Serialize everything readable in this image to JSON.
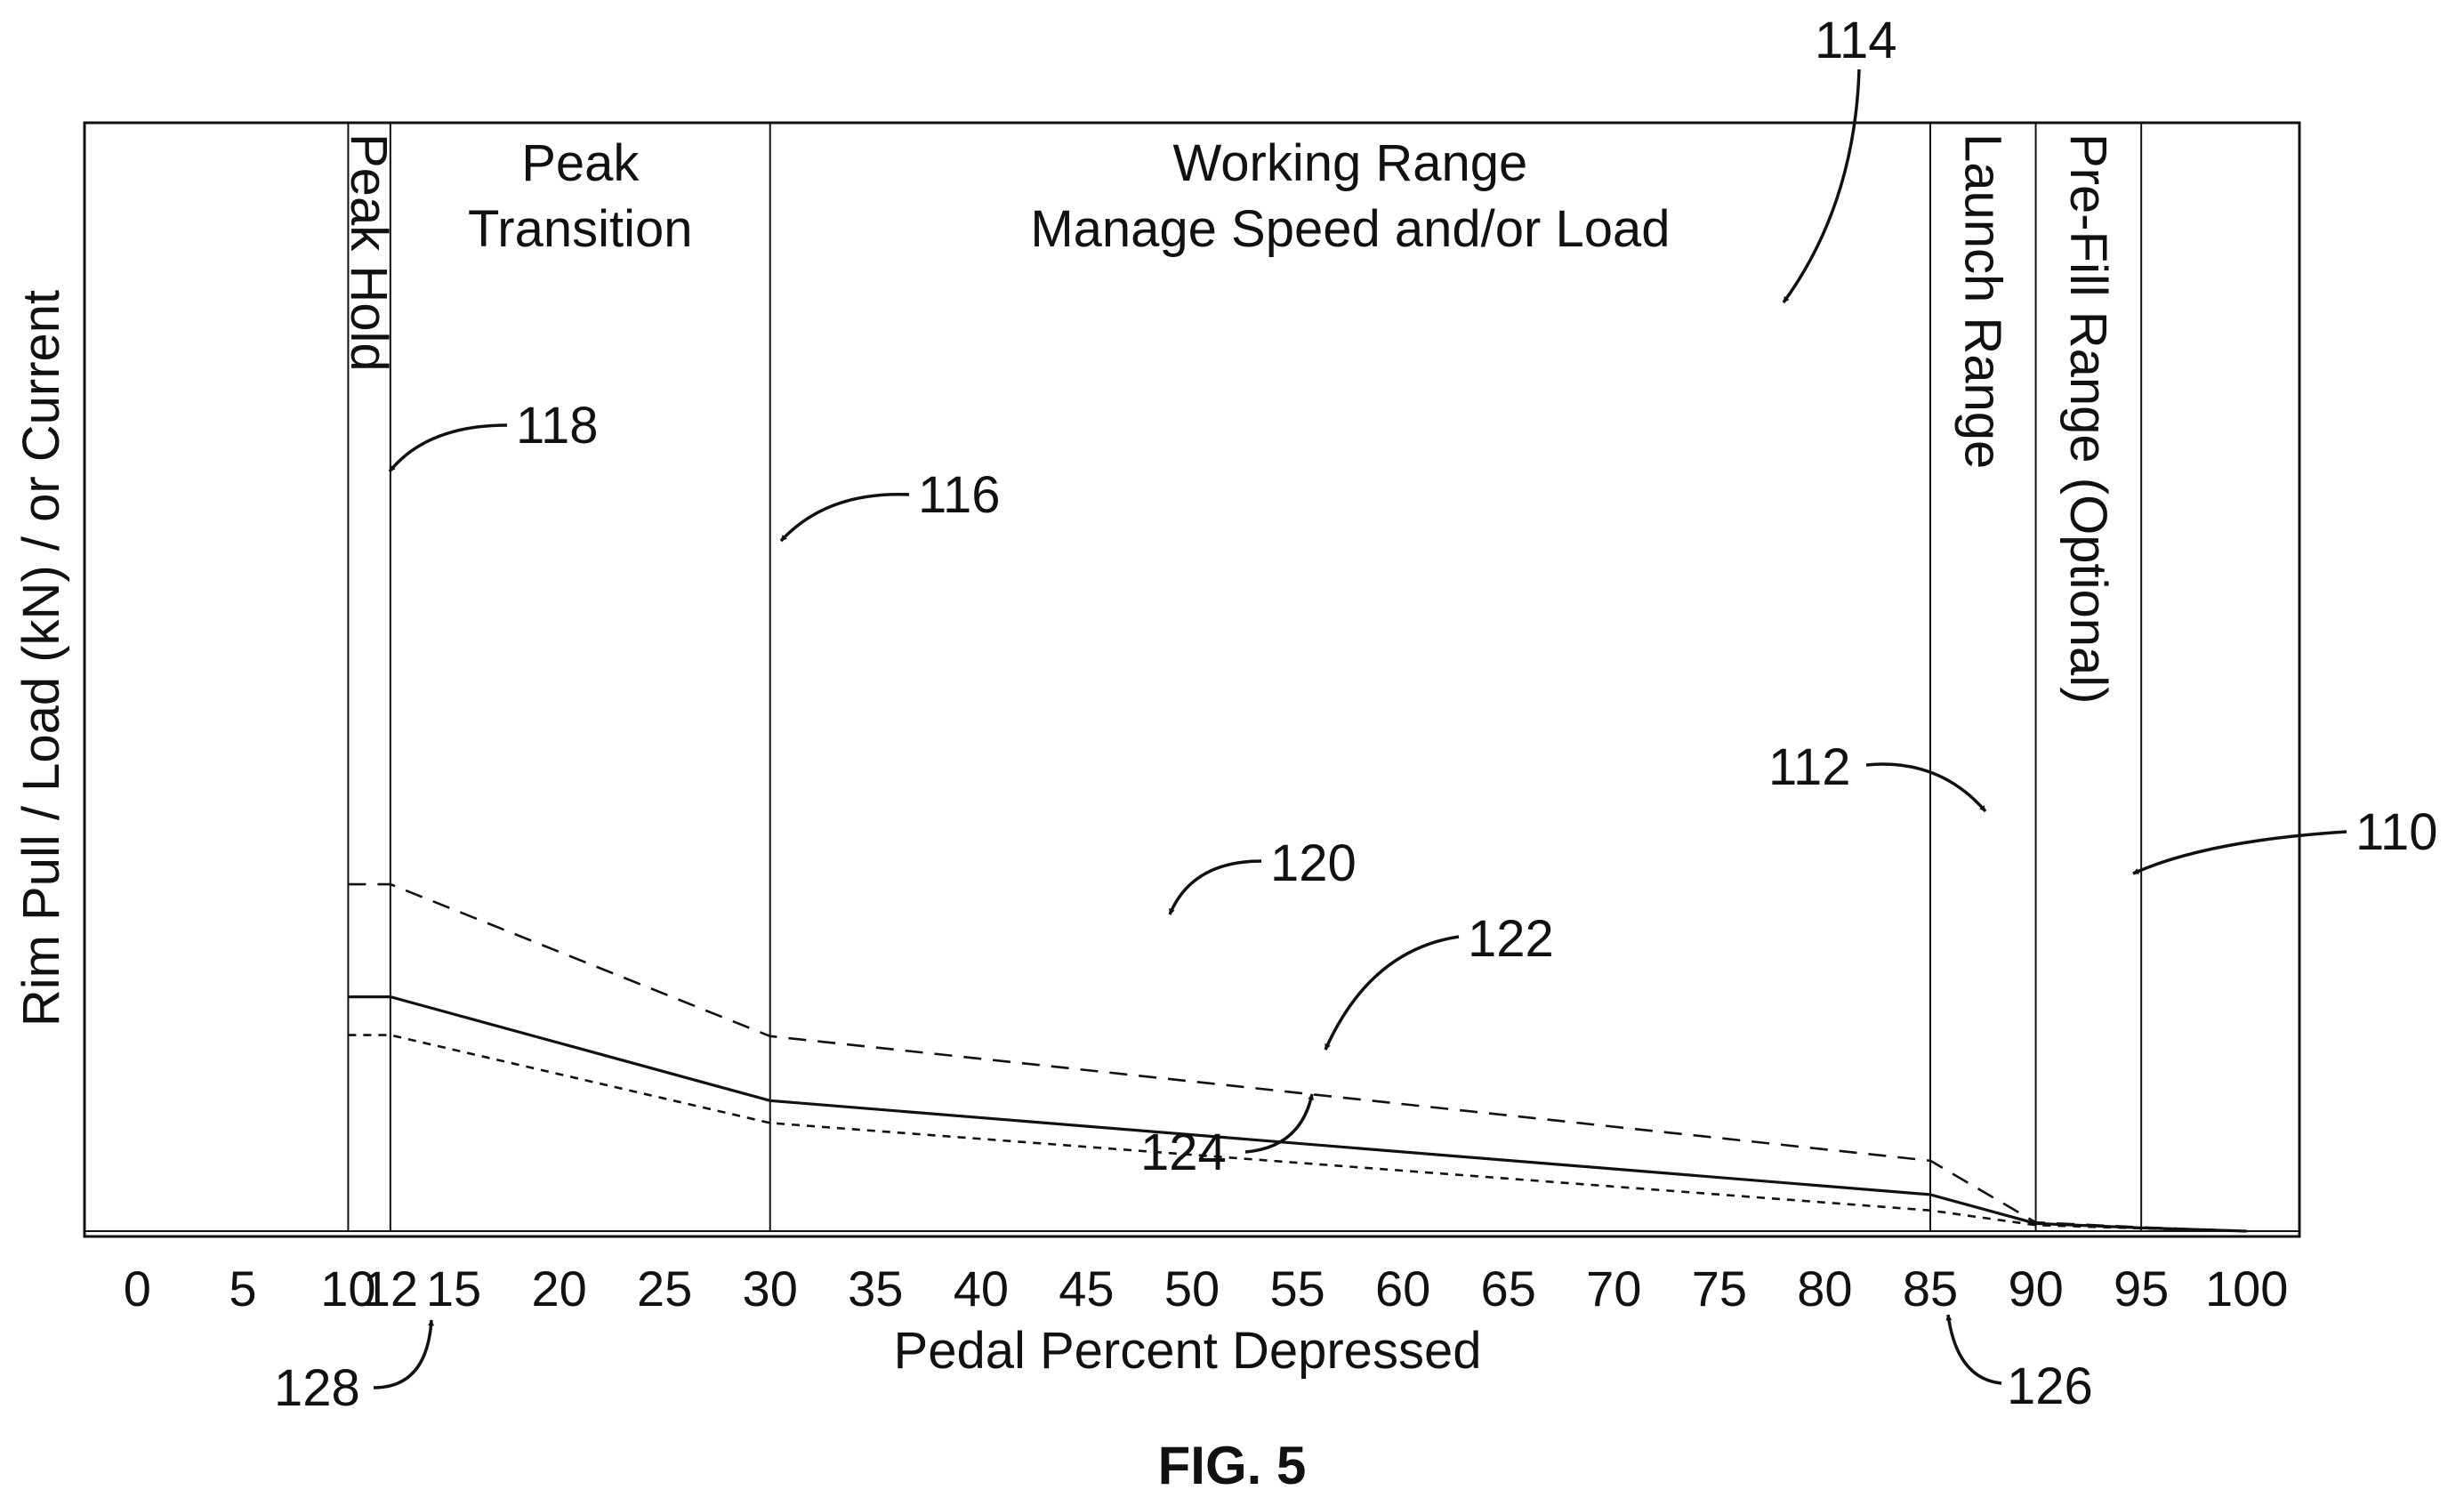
{
  "chart_data": {
    "type": "line",
    "xlabel": "Pedal Percent Depressed",
    "ylabel": "Rim Pull / Load (kN) / or Current",
    "figure_label": "FIG. 5",
    "x_ticks": [
      0,
      5,
      10,
      12,
      15,
      20,
      25,
      30,
      35,
      40,
      45,
      50,
      55,
      60,
      65,
      70,
      75,
      80,
      85,
      90,
      95,
      100
    ],
    "xlim": [
      -2.5,
      102.5
    ],
    "ylim": [
      0,
      1
    ],
    "grid": false,
    "region_dividers": [
      10,
      12,
      30,
      85,
      90,
      95
    ],
    "regions": [
      {
        "text": "Peak Hold",
        "orientation": "vertical",
        "x": 11
      },
      {
        "text": "Peak Transition",
        "lines": [
          "Peak",
          "Transition"
        ],
        "orientation": "horizontal",
        "x": 21
      },
      {
        "text": "Working Range Manage Speed and/or Load",
        "lines": [
          "Working Range",
          "Manage Speed and/or Load"
        ],
        "orientation": "horizontal",
        "x": 57.5
      },
      {
        "text": "Launch Range",
        "orientation": "vertical",
        "x": 87.5
      },
      {
        "text": "Pre-Fill Range (Optional)",
        "orientation": "vertical",
        "x": 92.5
      }
    ],
    "series": [
      {
        "ref": "120",
        "style": "dashed",
        "x": [
          10,
          12,
          30,
          85,
          90,
          95,
          100
        ],
        "y": [
          0.635,
          0.635,
          0.357,
          0.129,
          0.016,
          0.007,
          0.0
        ]
      },
      {
        "ref": "122",
        "style": "solid",
        "x": [
          10,
          12,
          30,
          85,
          90,
          95,
          100
        ],
        "y": [
          0.429,
          0.429,
          0.239,
          0.067,
          0.014,
          0.006,
          0.0
        ]
      },
      {
        "ref": "124",
        "style": "dotted",
        "x": [
          10,
          12,
          30,
          85,
          90,
          95,
          100
        ],
        "y": [
          0.359,
          0.359,
          0.198,
          0.038,
          0.011,
          0.005,
          0.0
        ]
      }
    ],
    "reference_numerals": [
      {
        "text": "110"
      },
      {
        "text": "112"
      },
      {
        "text": "114"
      },
      {
        "text": "116"
      },
      {
        "text": "118"
      },
      {
        "text": "120"
      },
      {
        "text": "122"
      },
      {
        "text": "124"
      },
      {
        "text": "126"
      },
      {
        "text": "128"
      }
    ]
  }
}
